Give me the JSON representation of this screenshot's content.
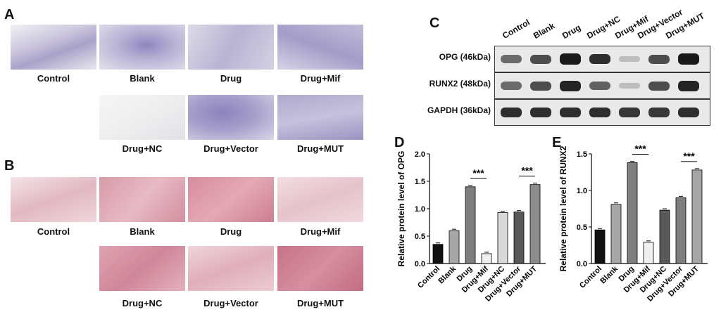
{
  "panels": {
    "A": "A",
    "B": "B",
    "C": "C",
    "D": "D",
    "E": "E"
  },
  "stain_rows": {
    "A": {
      "top": [
        "Control",
        "Blank",
        "Drug",
        "Drug+Mif"
      ],
      "bottom": [
        "Drug+NC",
        "Drug+Vector",
        "Drug+MUT"
      ]
    },
    "B": {
      "top": [
        "Control",
        "Blank",
        "Drug",
        "Drug+Mif"
      ],
      "bottom": [
        "Drug+NC",
        "Drug+Vector",
        "Drug+MUT"
      ]
    }
  },
  "blot": {
    "lanes": [
      "Control",
      "Blank",
      "Drug",
      "Drug+NC",
      "Drug+Mif",
      "Drug+Vector",
      "Drug+MUT"
    ],
    "rows": [
      {
        "label": "OPG (46kDa)",
        "intensity": [
          0.55,
          0.7,
          0.95,
          0.85,
          0.15,
          0.7,
          0.95
        ]
      },
      {
        "label": "RUNX2 (48kDa)",
        "intensity": [
          0.55,
          0.7,
          0.9,
          0.6,
          0.15,
          0.7,
          0.9
        ]
      },
      {
        "label": "GAPDH (36kDa)",
        "intensity": [
          0.85,
          0.85,
          0.85,
          0.85,
          0.8,
          0.8,
          0.85
        ]
      }
    ]
  },
  "chart_data": [
    {
      "type": "bar",
      "panel": "D",
      "ylabel": "Relative protein level of OPG",
      "categories": [
        "Control",
        "Blank",
        "Drug",
        "Drug+Mif",
        "Drug+NC",
        "Drug+Vector",
        "Drug+MUT"
      ],
      "values": [
        0.35,
        0.6,
        1.4,
        0.18,
        0.93,
        0.94,
        1.44
      ],
      "colors": [
        "#111111",
        "#a6a6a6",
        "#7f7f7f",
        "#f0f0f0",
        "#d9d9d9",
        "#595959",
        "#8c8c8c"
      ],
      "ylim": [
        0,
        2.0
      ],
      "yticks": [
        "0.0",
        "0.5",
        "1.0",
        "1.5",
        "2.0"
      ],
      "annotations": [
        {
          "text": "***",
          "from": 2,
          "to": 3
        },
        {
          "text": "***",
          "from": 5,
          "to": 6
        }
      ]
    },
    {
      "type": "bar",
      "panel": "E",
      "ylabel": "Relative protein level of RUNX2",
      "categories": [
        "Control",
        "Blank",
        "Drug",
        "Drug+Mif",
        "Drug+NC",
        "Drug+Vector",
        "Drug+MUT"
      ],
      "values": [
        0.46,
        0.81,
        1.38,
        0.29,
        0.73,
        0.9,
        1.28
      ],
      "colors": [
        "#111111",
        "#a6a6a6",
        "#7f7f7f",
        "#f0f0f0",
        "#595959",
        "#7f7f7f",
        "#a6a6a6"
      ],
      "ylim": [
        0,
        1.5
      ],
      "yticks": [
        "0.0",
        "0.5",
        "1.0",
        "1.5"
      ],
      "annotations": [
        {
          "text": "***",
          "from": 2,
          "to": 3
        },
        {
          "text": "***",
          "from": 5,
          "to": 6
        }
      ]
    }
  ]
}
